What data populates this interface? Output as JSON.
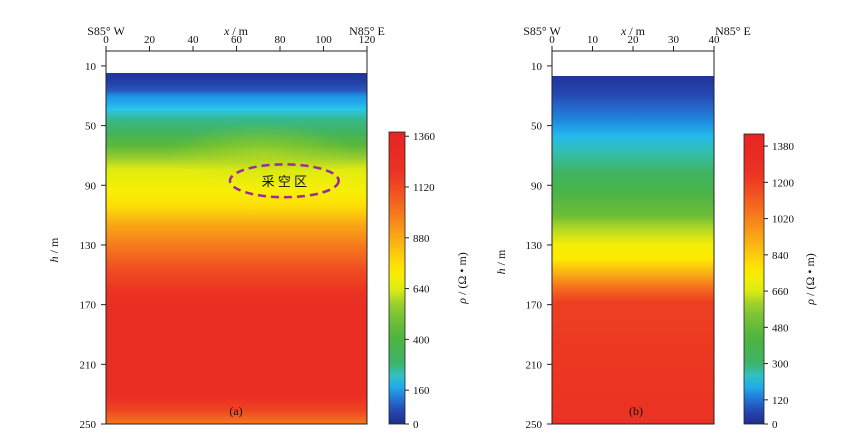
{
  "chart_data": [
    {
      "type": "heatmap",
      "panel_label": "(a)",
      "x_axis": {
        "label_var": "x",
        "label_unit": " / m",
        "min": 0,
        "max": 120,
        "ticks": [
          0,
          20,
          40,
          60,
          80,
          100,
          120
        ]
      },
      "y_axis": {
        "label_var": "h",
        "label_unit": " / m",
        "min": 0,
        "max": 250,
        "ticks": [
          10,
          50,
          90,
          130,
          170,
          210,
          250
        ],
        "inverted": true
      },
      "direction_left": "S85° W",
      "direction_right": "N85° E",
      "data_top_depth": 8,
      "colorbar": {
        "label_var": "ρ",
        "label_unit": " / (Ω • m)",
        "min": 0,
        "max": 1380,
        "ticks": [
          0,
          160,
          400,
          640,
          880,
          1120,
          1360
        ]
      },
      "resistivity_profile": [
        {
          "h": 8,
          "rho": 20
        },
        {
          "h": 14,
          "rho": 40
        },
        {
          "h": 20,
          "rho": 90
        },
        {
          "h": 24,
          "rho": 150
        },
        {
          "h": 28,
          "rho": 170
        },
        {
          "h": 33,
          "rho": 210
        },
        {
          "h": 40,
          "rho": 260
        },
        {
          "h": 50,
          "rho": 330
        },
        {
          "h": 58,
          "rho": 440
        },
        {
          "h": 66,
          "rho": 560
        },
        {
          "h": 75,
          "rho": 650
        },
        {
          "h": 90,
          "rho": 700
        },
        {
          "h": 100,
          "rho": 760
        },
        {
          "h": 112,
          "rho": 880
        },
        {
          "h": 128,
          "rho": 1000
        },
        {
          "h": 145,
          "rho": 1120
        },
        {
          "h": 160,
          "rho": 1200
        },
        {
          "h": 170,
          "rho": 1240
        },
        {
          "h": 230,
          "rho": 1240
        },
        {
          "h": 240,
          "rho": 1140
        },
        {
          "h": 250,
          "rho": 1000
        }
      ],
      "annotation": {
        "text": "采 空 区",
        "x_center": 82,
        "h_center": 87,
        "x_radius": 25,
        "h_radius": 11
      }
    },
    {
      "type": "heatmap",
      "panel_label": "(b)",
      "x_axis": {
        "label_var": "x",
        "label_unit": " / m",
        "min": 0,
        "max": 40,
        "ticks": [
          0,
          10,
          20,
          30,
          40
        ]
      },
      "y_axis": {
        "label_var": "h",
        "label_unit": " / m",
        "min": 0,
        "max": 250,
        "ticks": [
          10,
          50,
          90,
          130,
          170,
          210,
          250
        ],
        "inverted": true
      },
      "direction_left": "S85° W",
      "direction_right": "N85° E",
      "data_top_depth": 8,
      "colorbar": {
        "label_var": "ρ",
        "label_unit": " / (Ω • m)",
        "min": 0,
        "max": 1440,
        "ticks": [
          0,
          120,
          300,
          480,
          660,
          840,
          1020,
          1200,
          1380
        ]
      },
      "resistivity_profile": [
        {
          "h": 8,
          "rho": 20
        },
        {
          "h": 20,
          "rho": 60
        },
        {
          "h": 30,
          "rho": 110
        },
        {
          "h": 40,
          "rho": 150
        },
        {
          "h": 50,
          "rho": 200
        },
        {
          "h": 60,
          "rho": 250
        },
        {
          "h": 75,
          "rho": 320
        },
        {
          "h": 90,
          "rho": 400
        },
        {
          "h": 105,
          "rho": 500
        },
        {
          "h": 115,
          "rho": 620
        },
        {
          "h": 125,
          "rho": 720
        },
        {
          "h": 135,
          "rho": 760
        },
        {
          "h": 145,
          "rho": 900
        },
        {
          "h": 155,
          "rho": 1060
        },
        {
          "h": 165,
          "rho": 1200
        },
        {
          "h": 250,
          "rho": 1260
        }
      ]
    }
  ]
}
